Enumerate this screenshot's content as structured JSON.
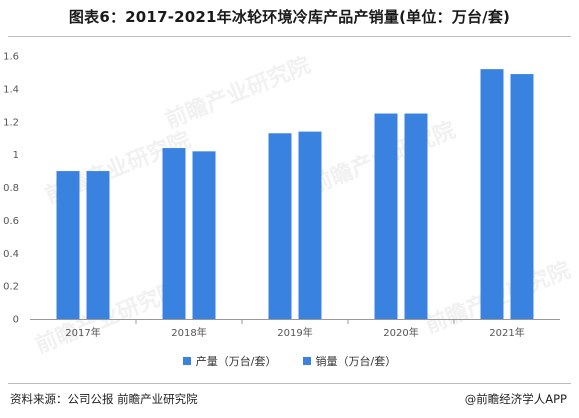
{
  "title": "图表6：2017-2021年冰轮环境冷库产品产销量(单位：万台/套)",
  "source": "资料来源：公司公报 前瞻产业研究院",
  "brand": "@前瞻经济学人APP",
  "watermark": "前瞻产业研究院",
  "colors": {
    "series1": "#3a82e0",
    "series2": "#3a82e0",
    "axis": "#999999"
  },
  "chart_data": {
    "type": "bar",
    "categories": [
      "2017年",
      "2018年",
      "2019年",
      "2020年",
      "2021年"
    ],
    "series": [
      {
        "name": "产量（万台/套）",
        "values": [
          0.9,
          1.04,
          1.13,
          1.25,
          1.52
        ]
      },
      {
        "name": "销量（万台/套）",
        "values": [
          0.9,
          1.02,
          1.14,
          1.25,
          1.49
        ]
      }
    ],
    "yticks": [
      "0",
      "0.2",
      "0.4",
      "0.6",
      "0.8",
      "1",
      "1.2",
      "1.4",
      "1.6"
    ],
    "ylim": [
      0,
      1.6
    ],
    "grid": false,
    "legend": "bottom"
  }
}
